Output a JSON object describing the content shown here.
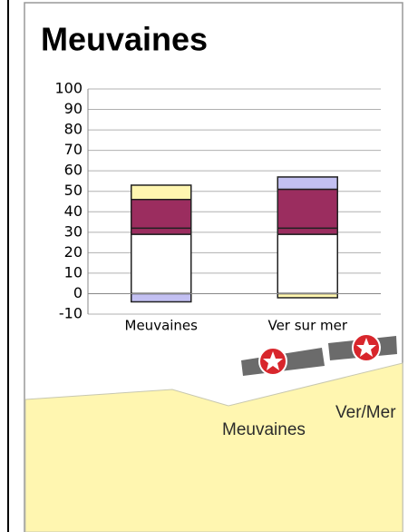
{
  "chart_data": {
    "type": "bar",
    "stacked": true,
    "title": "Meuvaines",
    "categories": [
      "Meuvaines",
      "Ver sur mer"
    ],
    "series": [
      {
        "color": "#ffffff",
        "values": [
          29,
          29
        ]
      },
      {
        "color": "#9b2d5f",
        "values": [
          3,
          3
        ]
      },
      {
        "color": "#9b2d5f",
        "values": [
          14,
          19
        ]
      },
      {
        "color": "#fff6b0",
        "values": [
          7,
          -2
        ]
      },
      {
        "color": "#c3c0f2",
        "values": [
          -4,
          6
        ]
      }
    ],
    "ylim": [
      -10,
      100
    ],
    "yticks": [
      -10,
      0,
      10,
      20,
      30,
      40,
      50,
      60,
      70,
      80,
      90,
      100
    ],
    "grid": true
  },
  "map": {
    "labels": [
      "Meuvaines",
      "Ver/Mer"
    ]
  }
}
